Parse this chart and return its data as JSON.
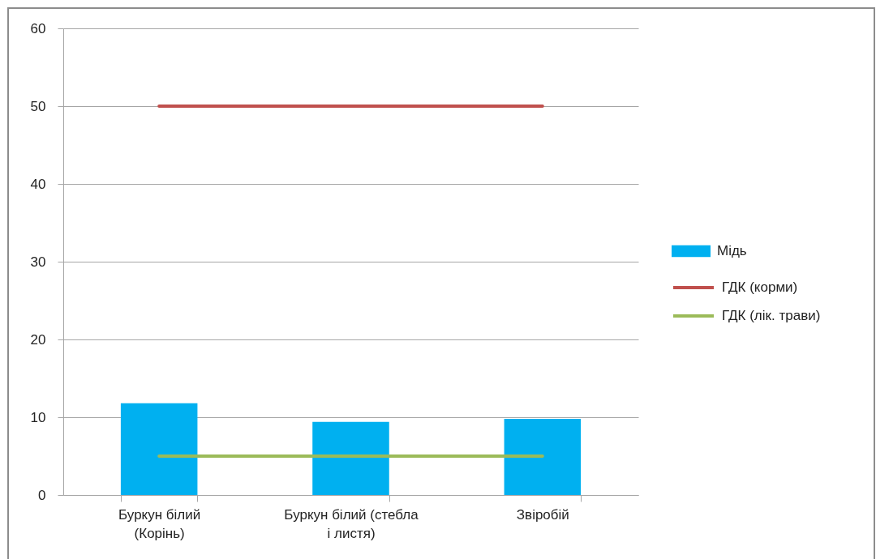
{
  "chart_data": {
    "type": "bar",
    "categories": [
      "Буркун білий (Корінь)",
      "Буркун білий (стебла і листя)",
      "Звіробій"
    ],
    "series": [
      {
        "name": "Мідь",
        "color": "#00b0f0",
        "values": [
          11.8,
          9.4,
          9.8
        ]
      },
      {
        "name": "ГДК (корми)",
        "type": "line",
        "color": "#c0504d",
        "values": [
          50,
          50,
          50
        ]
      },
      {
        "name": "ГДК (лік. трави)",
        "type": "line",
        "color": "#9bbb59",
        "values": [
          5,
          5,
          5
        ]
      }
    ],
    "ylim": [
      0,
      60
    ],
    "yticks": [
      0,
      10,
      20,
      30,
      40,
      50,
      60
    ],
    "grid": "y",
    "legend": "right"
  }
}
